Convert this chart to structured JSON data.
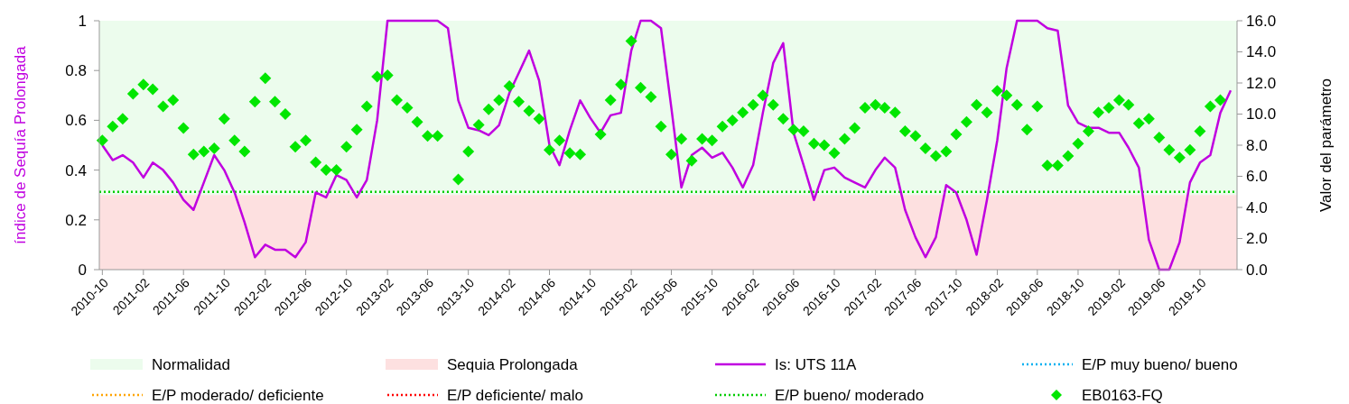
{
  "chart_data": {
    "type": "line",
    "ylabel": "índice de Sequía Prolongada",
    "y2label": "Valor del parámetro",
    "x": [
      "2010-10",
      "2010-11",
      "2010-12",
      "2011-01",
      "2011-02",
      "2011-03",
      "2011-04",
      "2011-05",
      "2011-06",
      "2011-07",
      "2011-08",
      "2011-09",
      "2011-10",
      "2011-11",
      "2011-12",
      "2012-01",
      "2012-02",
      "2012-03",
      "2012-04",
      "2012-05",
      "2012-06",
      "2012-07",
      "2012-08",
      "2012-09",
      "2012-10",
      "2012-11",
      "2012-12",
      "2013-01",
      "2013-02",
      "2013-03",
      "2013-04",
      "2013-05",
      "2013-06",
      "2013-07",
      "2013-08",
      "2013-09",
      "2013-10",
      "2013-11",
      "2013-12",
      "2014-01",
      "2014-02",
      "2014-03",
      "2014-04",
      "2014-05",
      "2014-06",
      "2014-07",
      "2014-08",
      "2014-09",
      "2014-10",
      "2014-11",
      "2014-12",
      "2015-01",
      "2015-02",
      "2015-03",
      "2015-04",
      "2015-05",
      "2015-06",
      "2015-07",
      "2015-08",
      "2015-09",
      "2015-10",
      "2015-11",
      "2015-12",
      "2016-01",
      "2016-02",
      "2016-03",
      "2016-04",
      "2016-05",
      "2016-06",
      "2016-07",
      "2016-08",
      "2016-09",
      "2016-10",
      "2016-11",
      "2016-12",
      "2017-01",
      "2017-02",
      "2017-03",
      "2017-04",
      "2017-05",
      "2017-06",
      "2017-07",
      "2017-08",
      "2017-09",
      "2017-10",
      "2017-11",
      "2017-12",
      "2018-01",
      "2018-02",
      "2018-03",
      "2018-04",
      "2018-05",
      "2018-06",
      "2018-07",
      "2018-08",
      "2018-09",
      "2018-10",
      "2018-11",
      "2018-12",
      "2019-01",
      "2019-02",
      "2019-03",
      "2019-04",
      "2019-05",
      "2019-06",
      "2019-07",
      "2019-08",
      "2019-09",
      "2019-10",
      "2019-11",
      "2019-12",
      "2020-01"
    ],
    "series": [
      {
        "name": "Is: UTS 11A",
        "color": "#c000e0",
        "values": [
          0.5,
          0.44,
          0.46,
          0.43,
          0.37,
          0.43,
          0.4,
          0.35,
          0.28,
          0.24,
          0.35,
          0.46,
          0.4,
          0.31,
          0.19,
          0.05,
          0.1,
          0.08,
          0.08,
          0.05,
          0.11,
          0.31,
          0.29,
          0.38,
          0.36,
          0.29,
          0.36,
          0.6,
          1,
          1,
          1,
          1,
          1,
          1,
          0.97,
          0.68,
          0.57,
          0.56,
          0.54,
          0.58,
          0.71,
          0.79,
          0.88,
          0.76,
          0.5,
          0.42,
          0.56,
          0.68,
          0.61,
          0.55,
          0.62,
          0.63,
          0.88,
          1,
          1,
          0.97,
          0.65,
          0.33,
          0.46,
          0.49,
          0.45,
          0.47,
          0.41,
          0.33,
          0.42,
          0.63,
          0.83,
          0.91,
          0.55,
          0.42,
          0.28,
          0.4,
          0.41,
          0.37,
          0.35,
          0.33,
          0.4,
          0.45,
          0.41,
          0.24,
          0.13,
          0.05,
          0.13,
          0.34,
          0.31,
          0.2,
          0.06,
          0.28,
          0.52,
          0.81,
          1,
          1,
          1,
          0.97,
          0.96,
          0.66,
          0.59,
          0.57,
          0.57,
          0.55,
          0.55,
          0.49,
          0.41,
          0.12,
          0,
          0,
          0.11,
          0.35,
          0.43,
          0.46,
          0.63,
          0.72
        ]
      },
      {
        "name": "E/P muy bueno/ bueno",
        "axis": "y2",
        "color": "#00b0f0",
        "line_style": "dotted",
        "values": [
          null,
          null,
          null,
          null,
          null,
          null,
          null,
          null,
          null,
          null,
          null,
          null,
          null,
          null,
          null,
          null,
          null,
          null,
          null,
          null,
          null,
          null,
          null,
          null,
          null,
          null,
          null,
          null,
          null,
          null,
          null,
          null,
          null,
          null,
          null,
          null,
          null,
          null,
          null,
          null,
          null,
          null,
          null,
          null,
          null,
          null,
          null,
          null,
          null,
          null,
          null,
          null,
          null,
          null,
          null,
          null,
          null,
          null,
          null,
          null,
          null,
          null,
          null,
          null,
          null,
          null,
          null,
          null,
          null,
          null,
          null,
          null,
          null,
          null,
          null,
          null,
          null,
          null,
          null,
          null,
          null,
          null,
          null,
          null,
          null,
          null,
          null,
          null,
          null,
          null,
          null,
          null,
          null,
          null,
          null,
          null,
          null,
          null,
          null,
          null,
          null,
          null,
          null,
          null,
          null,
          null,
          null,
          null,
          null,
          null,
          null,
          null
        ]
      },
      {
        "name": "E/P moderado/ deficiente",
        "axis": "y2",
        "color": "#ffa500",
        "line_style": "dotted",
        "values": [
          null,
          null,
          null,
          null,
          null,
          null,
          null,
          null,
          null,
          null,
          null,
          null,
          null,
          null,
          null,
          null,
          null,
          null,
          null,
          null,
          null,
          null,
          null,
          null,
          null,
          null,
          null,
          null,
          null,
          null,
          null,
          null,
          null,
          null,
          null,
          null,
          null,
          null,
          null,
          null,
          null,
          null,
          null,
          null,
          null,
          null,
          null,
          null,
          null,
          null,
          null,
          null,
          null,
          null,
          null,
          null,
          null,
          null,
          null,
          null,
          null,
          null,
          null,
          null,
          null,
          null,
          null,
          null,
          null,
          null,
          null,
          null,
          null,
          null,
          null,
          null,
          null,
          null,
          null,
          null,
          null,
          null,
          null,
          null,
          null,
          null,
          null,
          null,
          null,
          null,
          null,
          null,
          null,
          null,
          null,
          null,
          null,
          null,
          null,
          null,
          null,
          null,
          null,
          null,
          null,
          null,
          null,
          null,
          null,
          null,
          null,
          null
        ]
      },
      {
        "name": "E/P deficiente/ malo",
        "axis": "y2",
        "color": "#ff0000",
        "line_style": "dotted",
        "values": [
          null,
          null,
          null,
          null,
          null,
          null,
          null,
          null,
          null,
          null,
          null,
          null,
          null,
          null,
          null,
          null,
          null,
          null,
          null,
          null,
          null,
          null,
          null,
          null,
          null,
          null,
          null,
          null,
          null,
          null,
          null,
          null,
          null,
          null,
          null,
          null,
          null,
          null,
          null,
          null,
          null,
          null,
          null,
          null,
          null,
          null,
          null,
          null,
          null,
          null,
          null,
          null,
          null,
          null,
          null,
          null,
          null,
          null,
          null,
          null,
          null,
          null,
          null,
          null,
          null,
          null,
          null,
          null,
          null,
          null,
          null,
          null,
          null,
          null,
          null,
          null,
          null,
          null,
          null,
          null,
          null,
          null,
          null,
          null,
          null,
          null,
          null,
          null,
          null,
          null,
          null,
          null,
          null,
          null,
          null,
          null,
          null,
          null,
          null,
          null,
          null,
          null,
          null,
          null,
          null,
          null,
          null,
          null,
          null,
          null,
          null,
          null
        ]
      },
      {
        "name": "EB0163-FQ",
        "type": "scatter",
        "axis": "y2",
        "marker": "diamond",
        "color": "#00e600",
        "values": [
          8.3,
          9.2,
          9.7,
          11.3,
          11.9,
          11.6,
          10.5,
          10.9,
          9.1,
          7.4,
          7.6,
          7.8,
          9.7,
          8.3,
          7.6,
          10.8,
          12.3,
          10.8,
          10.0,
          7.9,
          8.3,
          6.9,
          6.4,
          6.4,
          7.9,
          9.0,
          10.5,
          12.4,
          12.5,
          10.9,
          10.4,
          9.5,
          8.6,
          8.6,
          null,
          5.8,
          7.6,
          9.3,
          10.3,
          10.9,
          11.8,
          10.8,
          10.2,
          9.7,
          7.7,
          8.3,
          7.5,
          7.4,
          null,
          8.7,
          10.9,
          11.9,
          14.7,
          11.7,
          11.1,
          9.2,
          7.4,
          8.4,
          7.0,
          8.4,
          8.3,
          9.2,
          9.6,
          10.1,
          10.6,
          11.2,
          10.6,
          9.7,
          9.0,
          8.9,
          8.1,
          8.0,
          7.5,
          8.4,
          9.1,
          10.4,
          10.6,
          10.4,
          10.1,
          8.9,
          8.6,
          7.8,
          7.3,
          7.6,
          8.7,
          9.5,
          10.6,
          10.1,
          11.5,
          11.2,
          10.6,
          9.0,
          10.5,
          6.7,
          6.7,
          7.3,
          8.1,
          8.9,
          10.1,
          10.4,
          10.9,
          10.6,
          9.4,
          9.7,
          8.5,
          7.7,
          7.2,
          7.7,
          8.9,
          10.5,
          10.9,
          null
        ]
      }
    ],
    "bands": [
      {
        "axis": "y",
        "from": 0.3,
        "to": 1,
        "label": "Normalidad",
        "color": "#ecfced"
      },
      {
        "axis": "y",
        "from": 0,
        "to": 0.3,
        "label": "Sequia Prolongada",
        "color": "#fde0e0"
      }
    ],
    "ref_lines": [
      {
        "axis": "y2",
        "value": 5,
        "label": "E/P bueno/ moderado",
        "color": "#00cc00",
        "line_style": "dotted"
      }
    ],
    "xlim": [
      "2010-09-22",
      "2020-01-20"
    ],
    "xticks": [
      "2010-10",
      "2011-02",
      "2011-06",
      "2011-10",
      "2012-02",
      "2012-06",
      "2012-10",
      "2013-02",
      "2013-06",
      "2013-10",
      "2014-02",
      "2014-06",
      "2014-10",
      "2015-02",
      "2015-06",
      "2015-10",
      "2016-02",
      "2016-06",
      "2016-10",
      "2017-02",
      "2017-06",
      "2017-10",
      "2018-02",
      "2018-06",
      "2018-10",
      "2019-02",
      "2019-06",
      "2019-10"
    ],
    "ylim": [
      0,
      1
    ],
    "yticks": [
      0,
      0.2,
      0.4,
      0.6,
      0.8,
      1
    ],
    "y2lim": [
      0,
      16
    ],
    "y2ticks": [
      {
        "value": 0,
        "label": "0.0"
      },
      {
        "value": 2,
        "label": "2.0"
      },
      {
        "value": 4,
        "label": "4.0"
      },
      {
        "value": 6,
        "label": "6.0"
      },
      {
        "value": 8,
        "label": "8.0"
      },
      {
        "value": 10,
        "label": "10.0"
      },
      {
        "value": 12,
        "label": "12.0"
      },
      {
        "value": 14,
        "label": "14.0"
      },
      {
        "value": 16,
        "label": "16.0"
      }
    ],
    "grid": false,
    "legend": "bottom"
  }
}
